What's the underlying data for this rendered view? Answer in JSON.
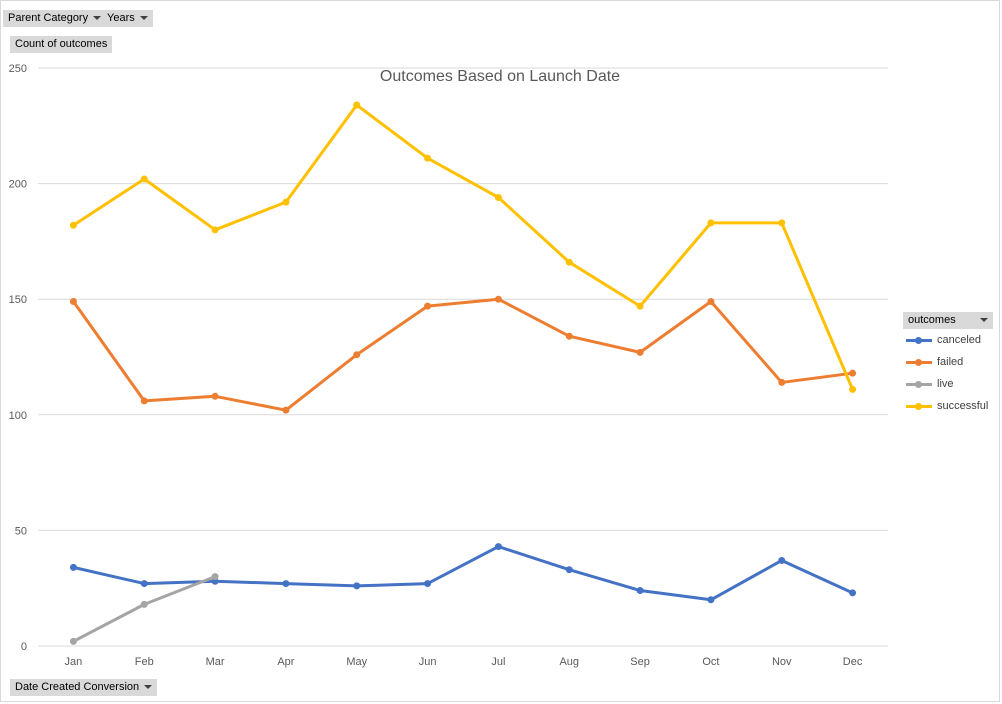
{
  "filters": {
    "parent_category": "Parent Category",
    "years": "Years",
    "values_field": "Count of outcomes",
    "axis_field": "Date Created Conversion"
  },
  "legend": {
    "header": "outcomes"
  },
  "colors": {
    "canceled": "#4472c4",
    "failed": "#ed7d31",
    "live": "#a5a5a5",
    "successful": "#ffc000",
    "grid": "#d9d9d9",
    "axis_text": "#595959"
  },
  "chart_data": {
    "type": "line",
    "title": "Outcomes Based on Launch Date",
    "xlabel": "",
    "ylabel": "",
    "categories": [
      "Jan",
      "Feb",
      "Mar",
      "Apr",
      "May",
      "Jun",
      "Jul",
      "Aug",
      "Sep",
      "Oct",
      "Nov",
      "Dec"
    ],
    "ylim": [
      0,
      250
    ],
    "yticks": [
      0,
      50,
      100,
      150,
      200,
      250
    ],
    "grid": true,
    "legend_position": "right",
    "series": [
      {
        "name": "canceled",
        "values": [
          34,
          27,
          28,
          27,
          26,
          27,
          43,
          33,
          24,
          20,
          37,
          23
        ]
      },
      {
        "name": "failed",
        "values": [
          149,
          106,
          108,
          102,
          126,
          147,
          150,
          134,
          127,
          149,
          114,
          118
        ]
      },
      {
        "name": "live",
        "values": [
          2,
          18,
          30,
          null,
          null,
          null,
          null,
          null,
          null,
          null,
          null,
          null
        ]
      },
      {
        "name": "successful",
        "values": [
          182,
          202,
          180,
          192,
          234,
          211,
          194,
          166,
          147,
          183,
          183,
          111
        ]
      }
    ]
  }
}
